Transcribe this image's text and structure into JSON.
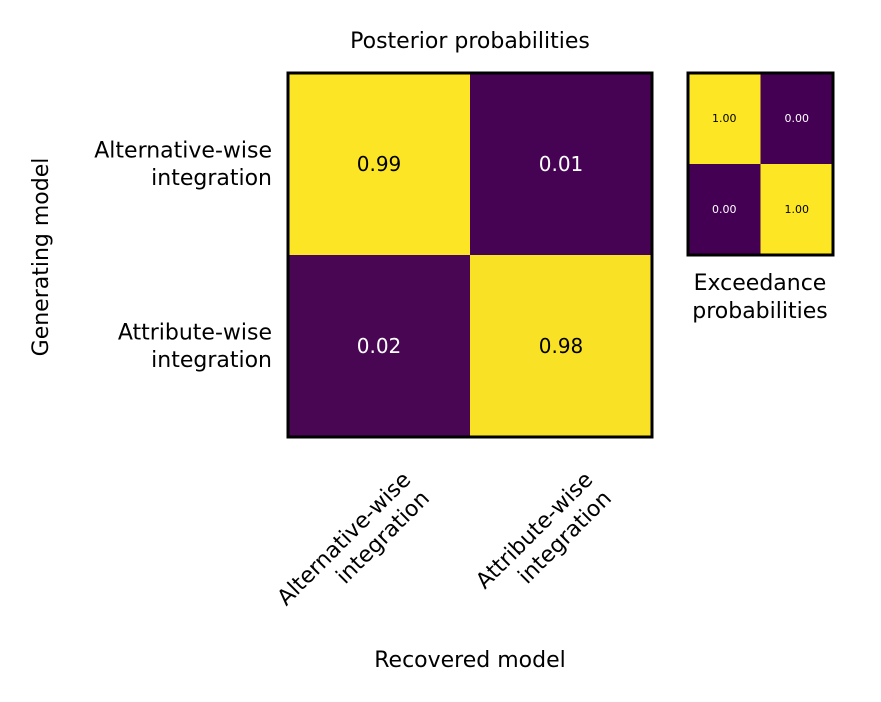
{
  "chart_data": [
    {
      "type": "heatmap",
      "title": "Posterior probabilities",
      "xlabel": "Recovered model",
      "ylabel": "Generating model",
      "x_categories": [
        [
          "Alternative-wise",
          "integration"
        ],
        [
          "Attribute-wise",
          "integration"
        ]
      ],
      "y_categories": [
        [
          "Alternative-wise",
          "integration"
        ],
        [
          "Attribute-wise",
          "integration"
        ]
      ],
      "values": [
        [
          0.99,
          0.01
        ],
        [
          0.02,
          0.98
        ]
      ],
      "labels": [
        [
          "0.99",
          "0.01"
        ],
        [
          "0.02",
          "0.98"
        ]
      ],
      "colormap": "viridis",
      "vlim": [
        0,
        1
      ]
    },
    {
      "type": "heatmap",
      "title": "",
      "xlabel": [
        "Exceedance",
        "probabilities"
      ],
      "values": [
        [
          1.0,
          0.0
        ],
        [
          0.0,
          1.0
        ]
      ],
      "labels": [
        [
          "1.00",
          "0.00"
        ],
        [
          "0.00",
          "1.00"
        ]
      ],
      "colormap": "viridis",
      "vlim": [
        0,
        1
      ]
    }
  ],
  "colors": {
    "low": "#440154",
    "high": "#fde725",
    "text_on_low": "#ffffff",
    "text_on_high": "#000000"
  }
}
